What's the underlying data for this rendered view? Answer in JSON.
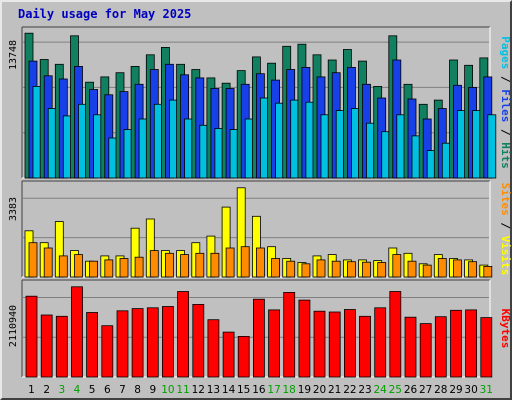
{
  "title": "Daily usage for May 2025",
  "chart_data": [
    {
      "type": "bar",
      "categories": [
        "1",
        "2",
        "3",
        "4",
        "5",
        "6",
        "7",
        "8",
        "9",
        "10",
        "11",
        "12",
        "13",
        "14",
        "15",
        "16",
        "17",
        "18",
        "19",
        "20",
        "21",
        "22",
        "23",
        "24",
        "25",
        "26",
        "27",
        "28",
        "29",
        "30",
        "31"
      ],
      "weekend_days": [
        "3",
        "4",
        "10",
        "11",
        "17",
        "18",
        "24",
        "25",
        "31"
      ],
      "ymax_label": "13748",
      "ylim": [
        0,
        13748
      ],
      "grid": true,
      "legend": "right (vertical)",
      "legend_entries": [
        {
          "label": "Pages",
          "color": "#00c0e0"
        },
        {
          "label": "Files",
          "color": "#1840e8"
        },
        {
          "label": "Hits",
          "color": "#108060"
        }
      ],
      "series": [
        {
          "name": "Hits",
          "color": "#108060",
          "values": [
            13748,
            11250,
            10800,
            13500,
            9100,
            9600,
            10000,
            10600,
            11700,
            12400,
            10800,
            10300,
            9500,
            9000,
            10200,
            11500,
            10900,
            12500,
            12700,
            11700,
            11200,
            12200,
            11100,
            8700,
            13500,
            8900,
            7000,
            7400,
            11200,
            10700,
            11400
          ]
        },
        {
          "name": "Files",
          "color": "#1840e8",
          "values": [
            11100,
            9700,
            9400,
            10600,
            8400,
            7900,
            8200,
            8900,
            10300,
            10800,
            9800,
            9500,
            8500,
            8500,
            8900,
            9900,
            9300,
            10300,
            10500,
            9600,
            10000,
            10500,
            8900,
            7600,
            11200,
            7500,
            5600,
            6600,
            8800,
            8600,
            9600
          ]
        },
        {
          "name": "Pages",
          "color": "#00c0e0",
          "values": [
            8700,
            6600,
            5900,
            7000,
            6000,
            3800,
            4600,
            5600,
            7000,
            7400,
            5600,
            5000,
            4700,
            4600,
            5600,
            7600,
            7100,
            7400,
            7200,
            6000,
            6400,
            6600,
            5200,
            4400,
            6000,
            4000,
            2600,
            3300,
            6400,
            6400,
            6000
          ]
        }
      ]
    },
    {
      "type": "bar",
      "categories": [
        "1",
        "2",
        "3",
        "4",
        "5",
        "6",
        "7",
        "8",
        "9",
        "10",
        "11",
        "12",
        "13",
        "14",
        "15",
        "16",
        "17",
        "18",
        "19",
        "20",
        "21",
        "22",
        "23",
        "24",
        "25",
        "26",
        "27",
        "28",
        "29",
        "30",
        "31"
      ],
      "ymax_label": "3383",
      "ylim": [
        0,
        3383
      ],
      "grid": true,
      "legend": "right (vertical)",
      "legend_entries": [
        {
          "label": "Sites",
          "color": "#ff8c00"
        },
        {
          "label": "Visits",
          "color": "#ffff00"
        }
      ],
      "series": [
        {
          "name": "Visits",
          "color": "#ffff00",
          "values": [
            1750,
            1300,
            2100,
            1000,
            600,
            800,
            800,
            1850,
            2200,
            1000,
            1000,
            1300,
            1550,
            2650,
            3383,
            2300,
            1150,
            700,
            550,
            800,
            850,
            650,
            650,
            620,
            1100,
            900,
            500,
            850,
            700,
            650,
            450
          ]
        },
        {
          "name": "Sites",
          "color": "#ff8c00",
          "values": [
            1300,
            1100,
            800,
            850,
            600,
            650,
            700,
            750,
            1000,
            900,
            850,
            900,
            900,
            1100,
            1150,
            1100,
            700,
            600,
            500,
            650,
            600,
            580,
            560,
            550,
            850,
            600,
            450,
            700,
            650,
            580,
            400
          ]
        }
      ]
    },
    {
      "type": "bar",
      "categories": [
        "1",
        "2",
        "3",
        "4",
        "5",
        "6",
        "7",
        "8",
        "9",
        "10",
        "11",
        "12",
        "13",
        "14",
        "15",
        "16",
        "17",
        "18",
        "19",
        "20",
        "21",
        "22",
        "23",
        "24",
        "25",
        "26",
        "27",
        "28",
        "29",
        "30",
        "31"
      ],
      "ymax_label": "2110940",
      "ylim": [
        0,
        2110940
      ],
      "grid": true,
      "legend": "right (vertical)",
      "legend_entries": [
        {
          "label": "KBytes",
          "color": "#ff0000"
        }
      ],
      "series": [
        {
          "name": "KBytes",
          "color": "#ff0000",
          "values": [
            1890000,
            1450000,
            1420000,
            2110940,
            1510000,
            1200000,
            1550000,
            1600000,
            1620000,
            1650000,
            2000000,
            1700000,
            1340000,
            1050000,
            950000,
            1820000,
            1570000,
            1980000,
            1800000,
            1540000,
            1520000,
            1580000,
            1420000,
            1620000,
            2000000,
            1400000,
            1250000,
            1410000,
            1560000,
            1570000,
            1390000
          ]
        }
      ]
    }
  ]
}
